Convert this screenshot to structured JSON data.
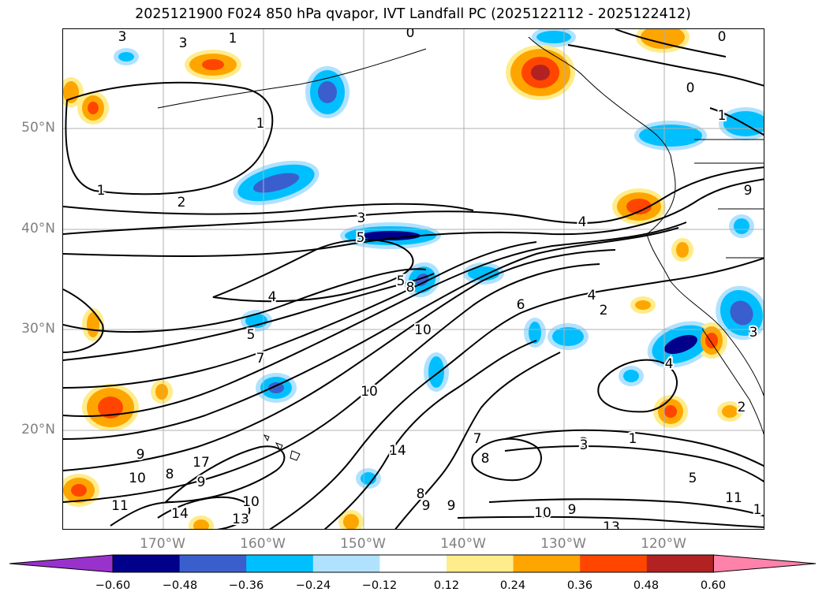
{
  "title": "2025121900 F024 850 hPa qvapor, IVT Landfall PC (2025122112 - 2025122412)",
  "map": {
    "lat_labels": [
      "50°N",
      "40°N",
      "30°N",
      "20°N"
    ],
    "lon_labels": [
      "170°W",
      "160°W",
      "150°W",
      "140°W",
      "130°W",
      "120°W"
    ],
    "contour_labels": [
      "3",
      "3",
      "1",
      "0",
      "0",
      "0",
      "1",
      "1",
      "1",
      "2",
      "3",
      "4",
      "5",
      "5",
      "4",
      "6",
      "8",
      "10",
      "10",
      "4",
      "2",
      "5",
      "3",
      "7",
      "9",
      "10",
      "11",
      "14",
      "17",
      "9",
      "8",
      "10",
      "13",
      "14",
      "7",
      "8",
      "9",
      "8",
      "9",
      "3",
      "1",
      "5",
      "10",
      "9",
      "13",
      "11",
      "1",
      "2",
      "3",
      "0",
      "4",
      "9"
    ],
    "line_color": "#000000",
    "grid_color": "#b0b0b0",
    "coast_color": "#000000"
  },
  "colorbar": {
    "tick_labels": [
      "−0.60",
      "−0.48",
      "−0.36",
      "−0.24",
      "−0.12",
      "0.12",
      "0.24",
      "0.36",
      "0.48",
      "0.60"
    ],
    "levels": [
      -0.6,
      -0.48,
      -0.36,
      -0.24,
      -0.12,
      0.12,
      0.24,
      0.36,
      0.48,
      0.6
    ],
    "colors": [
      "#9932cc",
      "#00008b",
      "#3a5fcd",
      "#00bfff",
      "#b0e2ff",
      "#ffffff",
      "#ffec8b",
      "#ffa500",
      "#ff4500",
      "#b22222",
      "#ff82ab"
    ]
  }
}
